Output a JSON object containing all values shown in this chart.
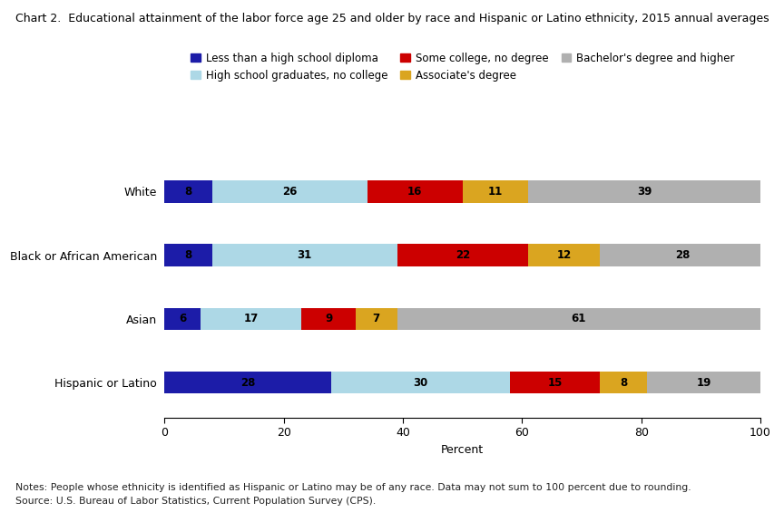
{
  "title": "Chart 2.  Educational attainment of the labor force age 25 and older by race and Hispanic or Latino ethnicity, 2015 annual averages",
  "categories": [
    "White",
    "Black or African American",
    "Asian",
    "Hispanic or Latino"
  ],
  "segments": [
    {
      "label": "Less than a high school diploma",
      "color": "#1c1ca8",
      "values": [
        8,
        8,
        6,
        28
      ]
    },
    {
      "label": "High school graduates, no college",
      "color": "#add8e6",
      "values": [
        26,
        31,
        17,
        30
      ]
    },
    {
      "label": "Some college, no degree",
      "color": "#cc0000",
      "values": [
        16,
        22,
        9,
        15
      ]
    },
    {
      "label": "Associate's degree",
      "color": "#daa520",
      "values": [
        11,
        12,
        7,
        8
      ]
    },
    {
      "label": "Bachelor's degree and higher",
      "color": "#b0b0b0",
      "values": [
        39,
        28,
        61,
        19
      ]
    }
  ],
  "xlabel": "Percent",
  "xlim": [
    0,
    100
  ],
  "xticks": [
    0,
    20,
    40,
    60,
    80,
    100
  ],
  "notes_line1": "Notes: People whose ethnicity is identified as Hispanic or Latino may be of any race. Data may not sum to 100 percent due to rounding.",
  "notes_line2": "Source: U.S. Bureau of Labor Statistics, Current Population Survey (CPS).",
  "bar_height": 0.35,
  "label_fontsize": 8.5,
  "title_fontsize": 9,
  "notes_fontsize": 7.8,
  "axis_label_fontsize": 9,
  "tick_fontsize": 9,
  "legend_fontsize": 8.5
}
